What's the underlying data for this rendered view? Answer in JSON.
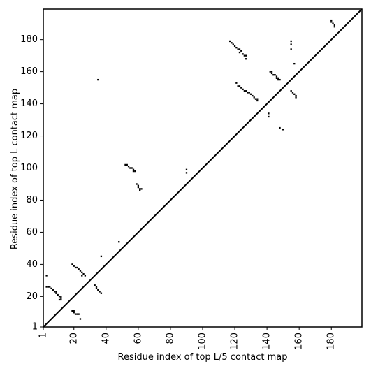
{
  "chart_data": {
    "type": "heatmap",
    "title": "",
    "xlabel": "Residue index of top L/5 contact map",
    "ylabel": "Residue index of top L contact map",
    "xlim": [
      1,
      199
    ],
    "ylim": [
      1,
      199
    ],
    "xticks": [
      1,
      20,
      40,
      60,
      80,
      100,
      120,
      140,
      160,
      180
    ],
    "yticks": [
      1,
      20,
      40,
      60,
      80,
      100,
      120,
      140,
      160,
      180
    ],
    "grid": false,
    "diagonal": true,
    "marker_color": "#000000",
    "upper_triangle_contacts": [
      [
        48,
        54
      ],
      [
        37,
        45
      ],
      [
        52,
        102
      ],
      [
        53,
        102
      ],
      [
        54,
        101
      ],
      [
        55,
        100
      ],
      [
        56,
        100
      ],
      [
        57,
        99
      ],
      [
        57,
        98
      ],
      [
        58,
        98
      ],
      [
        59,
        90
      ],
      [
        60,
        89
      ],
      [
        60,
        88
      ],
      [
        61,
        87
      ],
      [
        62,
        87
      ],
      [
        61,
        86
      ],
      [
        90,
        99
      ],
      [
        90,
        97
      ],
      [
        35,
        155
      ],
      [
        117,
        179
      ],
      [
        118,
        178
      ],
      [
        119,
        177
      ],
      [
        120,
        176
      ],
      [
        121,
        175
      ],
      [
        122,
        174
      ],
      [
        123,
        174
      ],
      [
        124,
        173
      ],
      [
        123,
        172
      ],
      [
        125,
        171
      ],
      [
        126,
        170
      ],
      [
        127,
        170
      ],
      [
        127,
        168
      ],
      [
        121,
        153
      ],
      [
        122,
        151
      ],
      [
        123,
        151
      ],
      [
        124,
        150
      ],
      [
        125,
        149
      ],
      [
        126,
        148
      ],
      [
        127,
        148
      ],
      [
        128,
        147
      ],
      [
        129,
        147
      ],
      [
        130,
        146
      ],
      [
        131,
        145
      ],
      [
        132,
        144
      ],
      [
        133,
        143
      ],
      [
        134,
        143
      ],
      [
        134,
        142
      ],
      [
        142,
        160
      ],
      [
        143,
        160
      ],
      [
        143,
        159
      ],
      [
        144,
        158
      ],
      [
        145,
        158
      ],
      [
        146,
        157
      ],
      [
        146,
        156
      ],
      [
        147,
        156
      ],
      [
        148,
        155
      ],
      [
        147,
        155
      ],
      [
        155,
        179
      ],
      [
        155,
        177
      ],
      [
        155,
        174
      ],
      [
        157,
        165
      ],
      [
        141,
        134
      ],
      [
        141,
        132
      ],
      [
        148,
        125
      ],
      [
        150,
        124
      ],
      [
        155,
        148
      ],
      [
        156,
        147
      ],
      [
        157,
        146
      ],
      [
        158,
        145
      ],
      [
        158,
        144
      ],
      [
        180,
        192
      ],
      [
        180,
        191
      ],
      [
        181,
        190
      ],
      [
        182,
        189
      ],
      [
        182,
        188
      ]
    ],
    "lower_triangle_contacts": [
      [
        3,
        33
      ],
      [
        3,
        26
      ],
      [
        4,
        26
      ],
      [
        5,
        26
      ],
      [
        6,
        25
      ],
      [
        7,
        24
      ],
      [
        8,
        23
      ],
      [
        9,
        23
      ],
      [
        9,
        22
      ],
      [
        10,
        21
      ],
      [
        11,
        20
      ],
      [
        12,
        20
      ],
      [
        12,
        19
      ],
      [
        12,
        18
      ],
      [
        11,
        18
      ],
      [
        19,
        11
      ],
      [
        20,
        11
      ],
      [
        20,
        10
      ],
      [
        21,
        9
      ],
      [
        22,
        9
      ],
      [
        23,
        9
      ],
      [
        24,
        6
      ],
      [
        19,
        40
      ],
      [
        20,
        39
      ],
      [
        21,
        38
      ],
      [
        22,
        38
      ],
      [
        23,
        37
      ],
      [
        24,
        36
      ],
      [
        25,
        35
      ],
      [
        26,
        34
      ],
      [
        25,
        33
      ],
      [
        27,
        33
      ],
      [
        33,
        27
      ],
      [
        34,
        26
      ],
      [
        34,
        25
      ],
      [
        35,
        24
      ],
      [
        36,
        23
      ],
      [
        37,
        22
      ]
    ]
  }
}
